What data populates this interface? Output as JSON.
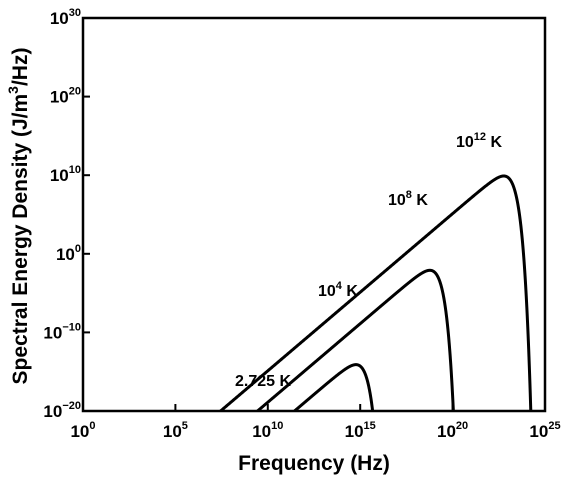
{
  "chart_data": {
    "type": "line",
    "title": "",
    "xlabel": "Frequency (Hz)",
    "ylabel_prefix": "Spectral Energy Density (J/m",
    "ylabel_sup": "3",
    "ylabel_suffix": "/Hz)",
    "x_scale": "log",
    "y_scale": "log",
    "xlim": [
      1,
      1e+25
    ],
    "ylim": [
      1e-20,
      1e+30
    ],
    "grid": false,
    "x_ticks": [
      {
        "value": 1,
        "base": "10",
        "exp": "0"
      },
      {
        "value": 100000.0,
        "base": "10",
        "exp": "5"
      },
      {
        "value": 10000000000.0,
        "base": "10",
        "exp": "10"
      },
      {
        "value": 1000000000000000.0,
        "base": "10",
        "exp": "15"
      },
      {
        "value": 1e+20,
        "base": "10",
        "exp": "20"
      },
      {
        "value": 1e+25,
        "base": "10",
        "exp": "25"
      }
    ],
    "y_ticks": [
      {
        "value": 1e-20,
        "base": "10",
        "exp": "−20"
      },
      {
        "value": 1e-10,
        "base": "10",
        "exp": "−10"
      },
      {
        "value": 1,
        "base": "10",
        "exp": "0"
      },
      {
        "value": 10000000000.0,
        "base": "10",
        "exp": "10"
      },
      {
        "value": 1e+20,
        "base": "10",
        "exp": "20"
      },
      {
        "value": 1e+30,
        "base": "10",
        "exp": "30"
      }
    ],
    "series": [
      {
        "temperature_K": 2.725,
        "label_base": "2.725 K",
        "label_exp": "",
        "label_unit": "",
        "x_min": 100000.0,
        "x_max": 10000000000000.0
      },
      {
        "temperature_K": 10000.0,
        "label_base": "10",
        "label_exp": "4",
        "label_unit": " K",
        "x_min": 100000.0,
        "x_max": 1e+16
      },
      {
        "temperature_K": 100000000.0,
        "label_base": "10",
        "label_exp": "8",
        "label_unit": " K",
        "x_min": 100000.0,
        "x_max": 1e+21
      },
      {
        "temperature_K": 1000000000000.0,
        "label_base": "10",
        "label_exp": "12",
        "label_unit": " K",
        "x_min": 100000.0,
        "x_max": 1e+25
      }
    ]
  }
}
